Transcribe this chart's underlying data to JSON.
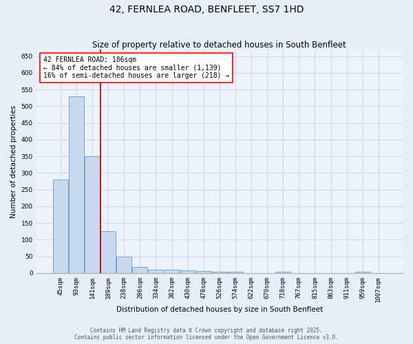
{
  "title": "42, FERNLEA ROAD, BENFLEET, SS7 1HD",
  "subtitle": "Size of property relative to detached houses in South Benfleet",
  "xlabel": "Distribution of detached houses by size in South Benfleet",
  "ylabel": "Number of detached properties",
  "footer_line1": "Contains HM Land Registry data © Crown copyright and database right 2025.",
  "footer_line2": "Contains public sector information licensed under the Open Government Licence v3.0.",
  "bin_labels": [
    "45sqm",
    "93sqm",
    "141sqm",
    "189sqm",
    "238sqm",
    "286sqm",
    "334sqm",
    "382sqm",
    "430sqm",
    "478sqm",
    "526sqm",
    "574sqm",
    "622sqm",
    "670sqm",
    "718sqm",
    "767sqm",
    "815sqm",
    "863sqm",
    "911sqm",
    "959sqm",
    "1007sqm"
  ],
  "bar_heights": [
    280,
    530,
    350,
    125,
    50,
    18,
    10,
    10,
    8,
    6,
    5,
    5,
    0,
    0,
    5,
    0,
    0,
    0,
    0,
    5,
    0
  ],
  "bar_color": "#c8d8ee",
  "bar_edgecolor": "#6fa8d0",
  "vline_x": 2.5,
  "vline_color": "#cc0000",
  "annotation_text": "42 FERNLEA ROAD: 186sqm\n← 84% of detached houses are smaller (1,139)\n16% of semi-detached houses are larger (218) →",
  "ylim": [
    0,
    670
  ],
  "yticks": [
    0,
    50,
    100,
    150,
    200,
    250,
    300,
    350,
    400,
    450,
    500,
    550,
    600,
    650
  ],
  "background_color": "#e8eef8",
  "plot_bg_color": "#eef2fa",
  "grid_color": "#d0d8e8",
  "title_fontsize": 10,
  "subtitle_fontsize": 8.5,
  "axis_label_fontsize": 7.5,
  "tick_fontsize": 6.5,
  "annotation_fontsize": 7,
  "footer_fontsize": 5.5
}
